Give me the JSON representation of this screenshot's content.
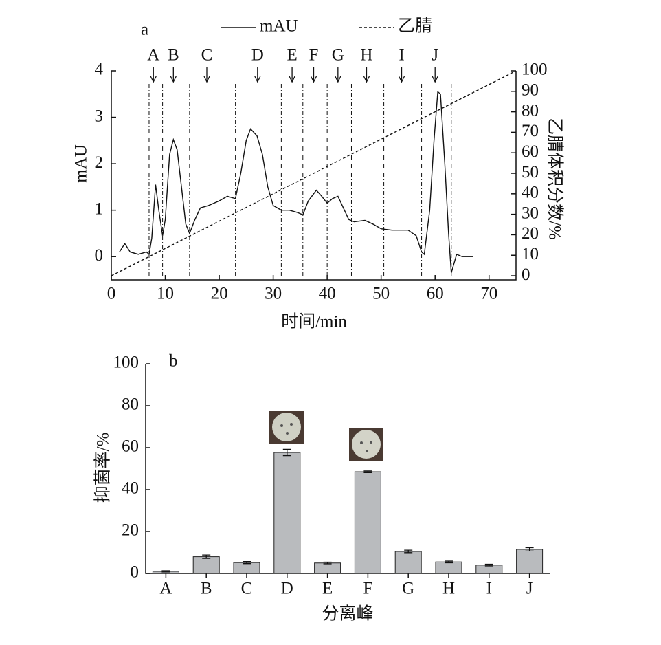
{
  "chart_data": [
    {
      "type": "line",
      "panel_label": "a",
      "x_label": "时间/min",
      "y_label": "mAU",
      "y2_label": "乙腈体积分数/%",
      "xlim": [
        0,
        75
      ],
      "xticks": [
        0,
        10,
        20,
        30,
        40,
        50,
        60,
        70
      ],
      "ylim": [
        -0.5,
        4
      ],
      "yticks": [
        0,
        1,
        2,
        3,
        4
      ],
      "y2lim": [
        -2,
        100
      ],
      "y2ticks": [
        0,
        10,
        20,
        30,
        40,
        50,
        60,
        70,
        80,
        90,
        100
      ],
      "x": [
        1.5,
        2.5,
        3.5,
        5,
        6.5,
        7,
        7.5,
        8.2,
        8.8,
        9.5,
        10,
        10.8,
        11.5,
        12.2,
        13,
        13.8,
        14.5,
        15.5,
        16.5,
        18,
        20,
        21.5,
        23,
        24,
        25,
        25.8,
        27,
        28,
        29,
        30,
        31.5,
        33,
        34.5,
        35.5,
        36.5,
        38,
        39,
        40,
        41,
        42,
        43,
        44,
        45,
        47,
        48.5,
        50,
        52,
        55,
        56.5,
        57.5,
        58,
        59,
        59.8,
        60.5,
        61,
        61.8,
        62.5,
        63,
        64,
        65,
        66,
        67
      ],
      "series": [
        {
          "name": "mAU",
          "color": "#111111",
          "style": "solid",
          "values": [
            0.1,
            0.28,
            0.1,
            0.05,
            0.1,
            0.05,
            0.4,
            1.55,
            1.0,
            0.45,
            0.8,
            2.2,
            2.52,
            2.3,
            1.5,
            0.7,
            0.5,
            0.8,
            1.05,
            1.1,
            1.2,
            1.3,
            1.25,
            1.8,
            2.5,
            2.75,
            2.6,
            2.2,
            1.5,
            1.1,
            1.0,
            1.0,
            0.95,
            0.9,
            1.2,
            1.43,
            1.3,
            1.15,
            1.25,
            1.3,
            1.05,
            0.8,
            0.75,
            0.78,
            0.7,
            0.6,
            0.57,
            0.57,
            0.45,
            0.1,
            0.05,
            1.0,
            2.5,
            3.55,
            3.5,
            2.0,
            0.5,
            -0.35,
            0.05,
            0.0,
            0.0,
            0.0
          ]
        },
        {
          "name": "乙腈",
          "color": "#111111",
          "style": "dashed",
          "axis": "y2",
          "x": [
            0,
            75
          ],
          "values": [
            0,
            100
          ]
        }
      ],
      "peaks": {
        "labels": [
          "A",
          "B",
          "C",
          "D",
          "E",
          "F",
          "G",
          "H",
          "I",
          "J"
        ],
        "x": [
          7.8,
          11.5,
          17.7,
          27.1,
          33.5,
          37.5,
          42,
          47.3,
          53.8,
          60
        ]
      },
      "fraction_bounds": [
        7,
        9.5,
        14.5,
        23,
        31.5,
        35.5,
        40,
        44.5,
        50.5,
        57.5,
        63
      ]
    },
    {
      "type": "bar",
      "panel_label": "b",
      "x_label": "分离峰",
      "y_label": "抑菌率/%",
      "categories": [
        "A",
        "B",
        "C",
        "D",
        "E",
        "F",
        "G",
        "H",
        "I",
        "J"
      ],
      "values": [
        1,
        8,
        5.2,
        57.7,
        5,
        48.5,
        10.5,
        5.5,
        4,
        11.5
      ],
      "errors": [
        0.3,
        0.8,
        0.5,
        1.5,
        0.4,
        0.4,
        0.6,
        0.4,
        0.4,
        0.8
      ],
      "color": "#b9bbbe",
      "ylim": [
        0,
        100
      ],
      "yticks": [
        0,
        20,
        40,
        60,
        80,
        100
      ]
    }
  ]
}
